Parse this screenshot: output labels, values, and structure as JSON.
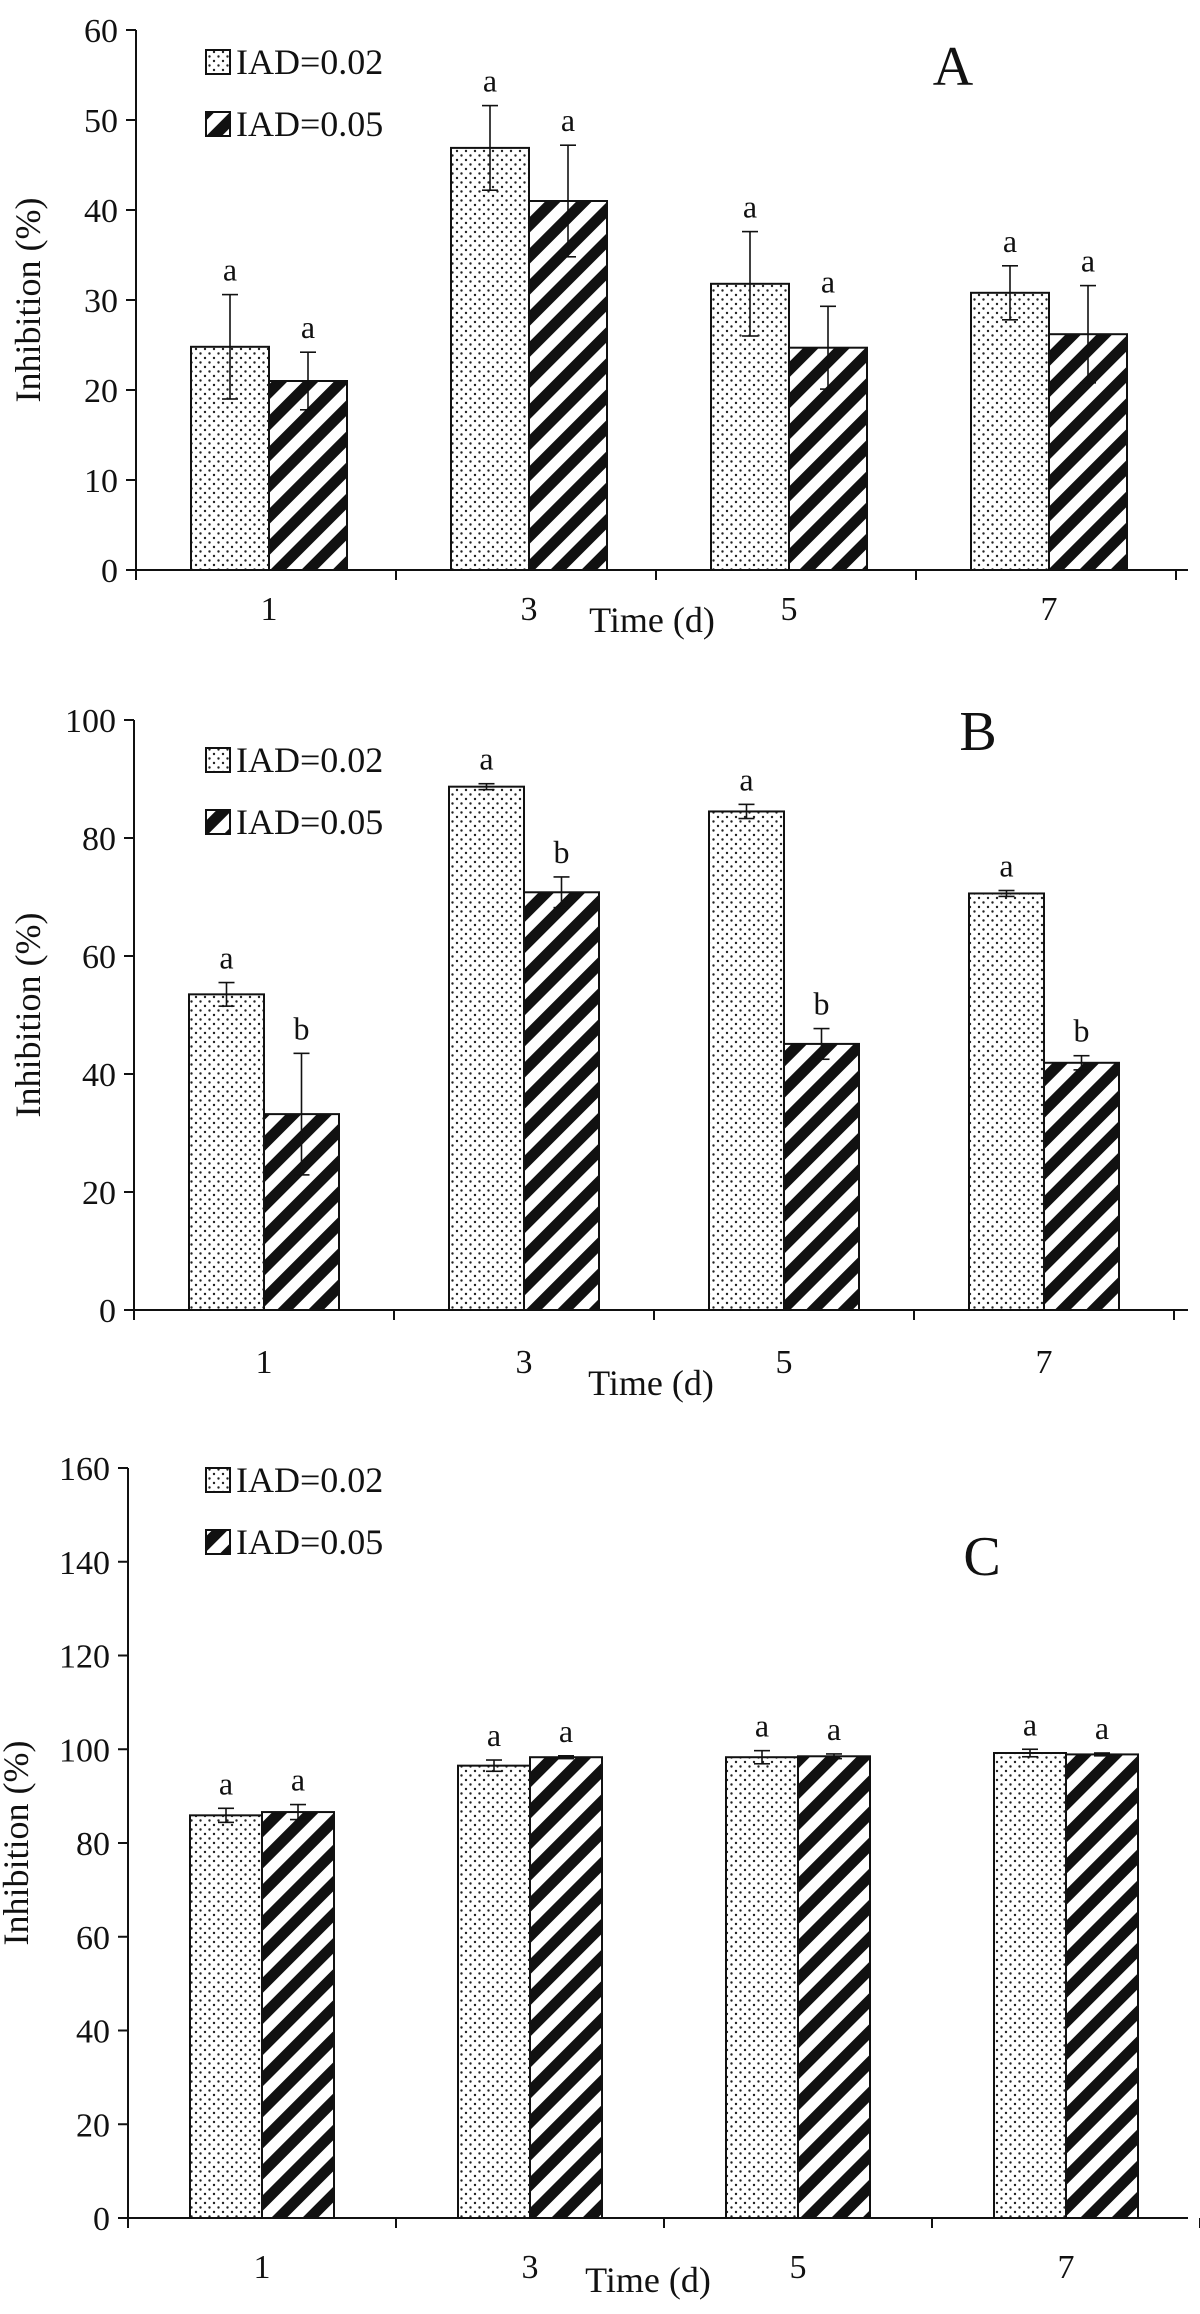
{
  "figure": {
    "title": "Inhibition (%) over time for two IAD levels, panels A–C"
  },
  "chart_data": [
    {
      "type": "bar",
      "panel": "A",
      "categories": [
        "1",
        "3",
        "5",
        "7"
      ],
      "series": [
        {
          "name": "IAD=0.02",
          "pattern": "dots",
          "values": [
            24.8,
            46.9,
            31.8,
            30.8
          ],
          "errors": [
            5.8,
            4.7,
            5.8,
            3.0
          ],
          "letters": [
            "a",
            "a",
            "a",
            "a"
          ]
        },
        {
          "name": "IAD=0.05",
          "pattern": "stripes",
          "values": [
            21.0,
            41.0,
            24.7,
            26.2
          ],
          "errors": [
            3.2,
            6.2,
            4.6,
            5.4
          ],
          "letters": [
            "a",
            "a",
            "a",
            "a"
          ]
        }
      ],
      "xlabel": "Time (d)",
      "ylabel": "Inhibition (%)",
      "ylim": [
        0,
        60
      ],
      "yticks": [
        0,
        10,
        20,
        30,
        40,
        50,
        60
      ],
      "legend_position": "top-left",
      "grid": false
    },
    {
      "type": "bar",
      "panel": "B",
      "categories": [
        "1",
        "3",
        "5",
        "7"
      ],
      "series": [
        {
          "name": "IAD=0.02",
          "pattern": "dots",
          "values": [
            53.5,
            88.7,
            84.5,
            70.6
          ],
          "errors": [
            2.0,
            0.5,
            1.2,
            0.5
          ],
          "letters": [
            "a",
            "a",
            "a",
            "a"
          ]
        },
        {
          "name": "IAD=0.05",
          "pattern": "stripes",
          "values": [
            33.2,
            70.8,
            45.1,
            41.9
          ],
          "errors": [
            10.3,
            2.6,
            2.6,
            1.2
          ],
          "letters": [
            "b",
            "b",
            "b",
            "b"
          ]
        }
      ],
      "xlabel": "Time (d)",
      "ylabel": "Inhibition (%)",
      "ylim": [
        0,
        100
      ],
      "yticks": [
        0,
        20,
        40,
        60,
        80,
        100
      ],
      "legend_position": "top-left",
      "grid": false
    },
    {
      "type": "bar",
      "panel": "C",
      "categories": [
        "1",
        "3",
        "5",
        "7"
      ],
      "series": [
        {
          "name": "IAD=0.02",
          "pattern": "dots",
          "values": [
            85.9,
            96.5,
            98.3,
            99.2
          ],
          "errors": [
            1.5,
            1.2,
            1.4,
            0.8
          ],
          "letters": [
            "a",
            "a",
            "a",
            "a"
          ]
        },
        {
          "name": "IAD=0.05",
          "pattern": "stripes",
          "values": [
            86.6,
            98.3,
            98.5,
            98.9
          ],
          "errors": [
            1.6,
            0.3,
            0.5,
            0.3
          ],
          "letters": [
            "a",
            "a",
            "a",
            "a"
          ]
        }
      ],
      "xlabel": "Time (d)",
      "ylabel": "Inhibition (%)",
      "ylim": [
        0,
        160
      ],
      "yticks": [
        0,
        20,
        40,
        60,
        80,
        100,
        120,
        140,
        160
      ],
      "legend_position": "top-left",
      "grid": false
    }
  ]
}
